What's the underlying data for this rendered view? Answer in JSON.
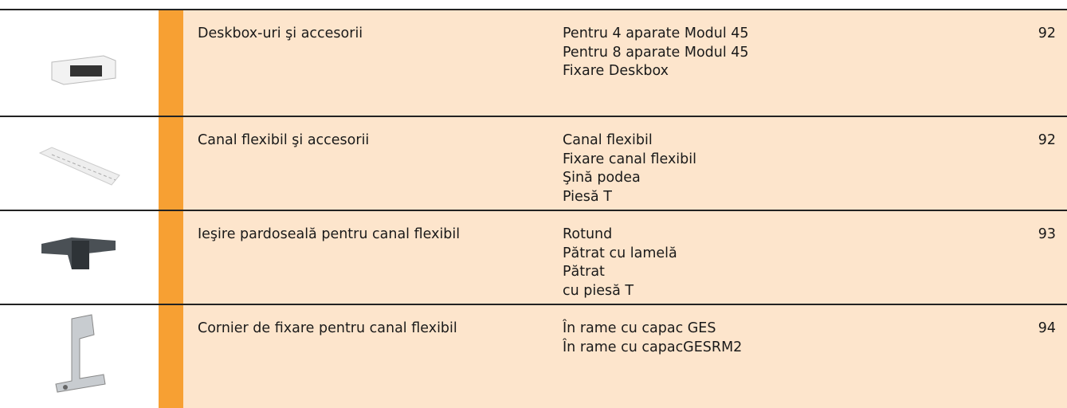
{
  "rows": [
    {
      "title": "Deskbox-uri şi accesorii",
      "items": [
        "Pentru 4 aparate Modul 45",
        "Pentru 8 aparate Modul 45",
        "Fixare Deskbox"
      ],
      "page": 92
    },
    {
      "title": "Canal flexibil şi accesorii",
      "items": [
        "Canal flexibil",
        "Fixare canal flexibil",
        "Şină podea",
        "Piesă T"
      ],
      "page": 92
    },
    {
      "title": "Ieşire pardoseală pentru canal flexibil",
      "items": [
        "Rotund",
        "Pătrat cu lamelă",
        "Pătrat",
        "cu piesă T"
      ],
      "page": 93
    },
    {
      "title": "Cornier de fixare pentru canal flexibil",
      "items": [
        "În rame cu capac GES",
        "În rame cu capacGESRM2"
      ],
      "page": 94
    }
  ]
}
